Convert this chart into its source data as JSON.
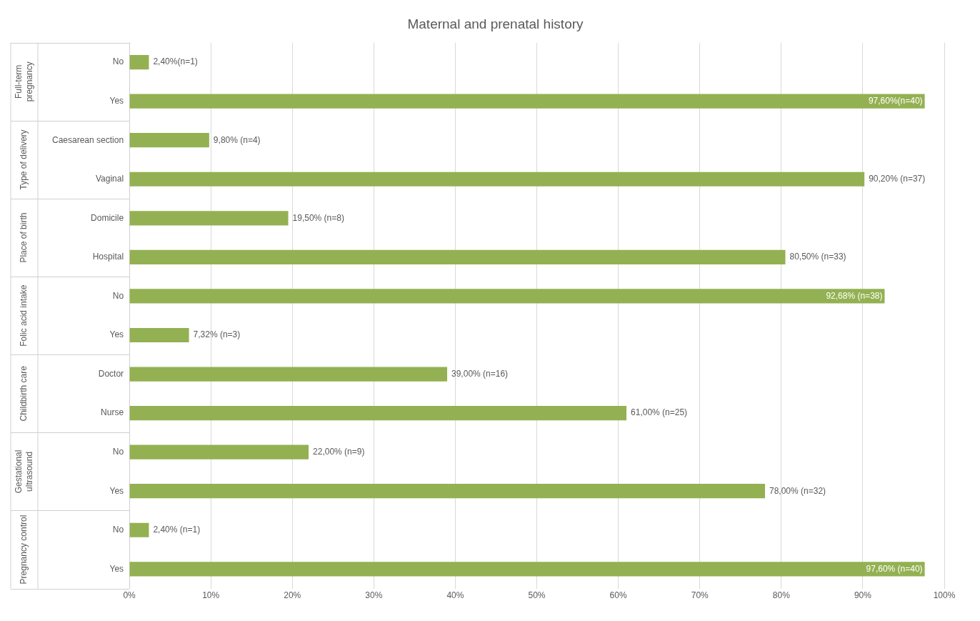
{
  "chart_data": {
    "type": "bar",
    "orientation": "horizontal",
    "title": "Maternal and prenatal history",
    "categories": [
      "No",
      "Yes",
      "Caesarean section",
      "Vaginal",
      "Domicile",
      "Hospital",
      "No",
      "Yes",
      "Doctor",
      "Nurse",
      "No",
      "Yes",
      "No",
      "Yes"
    ],
    "values": [
      2.4,
      97.6,
      9.8,
      90.2,
      19.5,
      80.5,
      92.68,
      7.32,
      39,
      61,
      22,
      78,
      2.4,
      97.6
    ],
    "value_labels": [
      "2,40%(n=1)",
      "97,60%(n=40)",
      "9,80% (n=4)",
      "90,20% (n=37)",
      "19,50% (n=8)",
      "80,50% (n=33)",
      "92,68% (n=38)",
      "7,32% (n=3)",
      "39,00% (n=16)",
      "61,00% (n=25)",
      "22,00% (n=9)",
      "78,00% (n=32)",
      "2,40% (n=1)",
      "97,60% (n=40)"
    ],
    "color": "#93b152",
    "annotations": [
      "Full-term pregnancy",
      "Type of delivery",
      "Place of birth",
      "Folic acid intake",
      "Childbirth care",
      "Gestational ultrasound",
      "Pregnancy control"
    ],
    "xlim": [
      0,
      100
    ],
    "xticks": [
      {
        "value": 0,
        "label": "0%"
      },
      {
        "value": 10,
        "label": "10%"
      },
      {
        "value": 20,
        "label": "20%"
      },
      {
        "value": 30,
        "label": "30%"
      },
      {
        "value": 40,
        "label": "40%"
      },
      {
        "value": 50,
        "label": "50%"
      },
      {
        "value": 60,
        "label": "60%"
      },
      {
        "value": 70,
        "label": "70%"
      },
      {
        "value": 80,
        "label": "80%"
      },
      {
        "value": 90,
        "label": "90%"
      },
      {
        "value": 100,
        "label": "100%"
      }
    ],
    "grid": "x",
    "legend": false
  }
}
